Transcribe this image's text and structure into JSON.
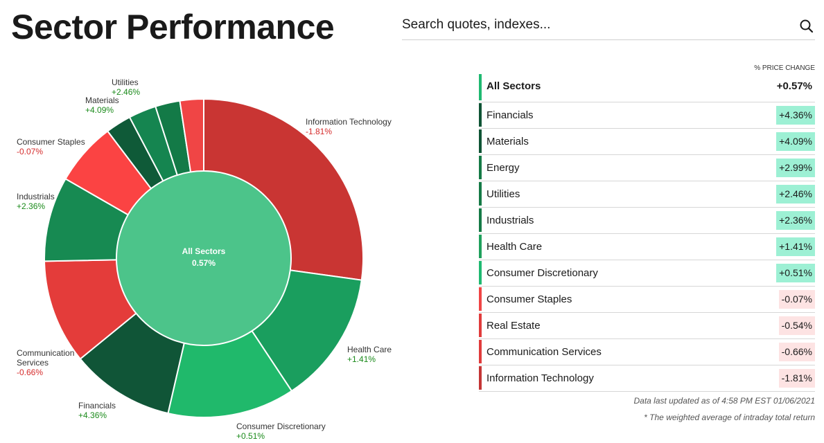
{
  "page": {
    "title": "Sector Performance",
    "search_placeholder": "Search quotes, indexes...",
    "search_icon": "search-icon"
  },
  "colors": {
    "positive_text": "#1a8a1a",
    "negative_text": "#d52b2b",
    "positive_badge": "#9df0d4",
    "negative_badge": "#fde3e3"
  },
  "table": {
    "column_header": "% PRICE CHANGE",
    "rows": [
      {
        "name": "All Sectors",
        "change": "+0.57%",
        "bar": "#1fb971",
        "badge": "none",
        "total": true
      },
      {
        "name": "Financials",
        "change": "+4.36%",
        "bar": "#0f5435",
        "badge": "pos"
      },
      {
        "name": "Materials",
        "change": "+4.09%",
        "bar": "#0f5435",
        "badge": "pos"
      },
      {
        "name": "Energy",
        "change": "+2.99%",
        "bar": "#157a46",
        "badge": "pos"
      },
      {
        "name": "Utilities",
        "change": "+2.46%",
        "bar": "#157a46",
        "badge": "pos"
      },
      {
        "name": "Industrials",
        "change": "+2.36%",
        "bar": "#157a46",
        "badge": "pos"
      },
      {
        "name": "Health Care",
        "change": "+1.41%",
        "bar": "#1fa05c",
        "badge": "pos"
      },
      {
        "name": "Consumer Discretionary",
        "change": "+0.51%",
        "bar": "#1fb971",
        "badge": "pos"
      },
      {
        "name": "Consumer Staples",
        "change": "-0.07%",
        "bar": "#f04545",
        "badge": "neg"
      },
      {
        "name": "Real Estate",
        "change": "-0.54%",
        "bar": "#e03c3c",
        "badge": "neg"
      },
      {
        "name": "Communication Services",
        "change": "-0.66%",
        "bar": "#e03c3c",
        "badge": "neg"
      },
      {
        "name": "Information Technology",
        "change": "-1.81%",
        "bar": "#c43535",
        "badge": "neg"
      }
    ]
  },
  "footer": {
    "updated": "Data last updated as of 4:58 PM EST 01/06/2021",
    "footnote": "* The weighted average of intraday total return"
  },
  "chart_data": {
    "type": "pie",
    "style": "donut",
    "center": {
      "label": "All Sectors",
      "value": 0.57,
      "value_text": "0.57%",
      "color": "#4cc48a"
    },
    "slices": [
      {
        "name": "Information Technology",
        "change": -1.81,
        "label_value": "-1.81%",
        "weight": 27.2,
        "color": "#c93533"
      },
      {
        "name": "Health Care",
        "change": 1.41,
        "label_value": "+1.41%",
        "weight": 13.5,
        "color": "#1a9e5e"
      },
      {
        "name": "Consumer Discretionary",
        "change": 0.51,
        "label_value": "+0.51%",
        "weight": 12.9,
        "color": "#20b96b"
      },
      {
        "name": "Financials",
        "change": 4.36,
        "label_value": "+4.36%",
        "weight": 10.5,
        "color": "#105537"
      },
      {
        "name": "Communication Services",
        "change": -0.66,
        "label_value": "-0.66%",
        "weight": 10.6,
        "color": "#e43c3a"
      },
      {
        "name": "Industrials",
        "change": 2.36,
        "label_value": "+2.36%",
        "weight": 8.6,
        "color": "#178a52"
      },
      {
        "name": "Consumer Staples",
        "change": -0.07,
        "label_value": "-0.07%",
        "weight": 6.4,
        "color": "#fb4343"
      },
      {
        "name": "Materials",
        "change": 4.09,
        "label_value": "+4.09%",
        "weight": 2.6,
        "color": "#0f5a38"
      },
      {
        "name": "Utilities",
        "change": 2.46,
        "label_value": "+2.46%",
        "weight": 2.8,
        "color": "#158550"
      },
      {
        "name": "Energy",
        "change": 2.99,
        "label_value": "+2.99%",
        "weight": 2.5,
        "color": "#137a47"
      },
      {
        "name": "Real Estate",
        "change": -0.54,
        "label_value": "-0.54%",
        "weight": 2.4,
        "color": "#f04545"
      }
    ],
    "labels": [
      {
        "name": "Information Technology",
        "lines": [
          "Information Technology"
        ],
        "value": "-1.81%",
        "positive": false
      },
      {
        "name": "Health Care",
        "lines": [
          "Health Care"
        ],
        "value": "+1.41%",
        "positive": true
      },
      {
        "name": "Consumer Discretionary",
        "lines": [
          "Consumer Discretionary"
        ],
        "value": "+0.51%",
        "positive": true
      },
      {
        "name": "Financials",
        "lines": [
          "Financials"
        ],
        "value": "+4.36%",
        "positive": true
      },
      {
        "name": "Communication Services",
        "lines": [
          "Communication",
          "Services"
        ],
        "value": "-0.66%",
        "positive": false
      },
      {
        "name": "Industrials",
        "lines": [
          "Industrials"
        ],
        "value": "+2.36%",
        "positive": true
      },
      {
        "name": "Consumer Staples",
        "lines": [
          "Consumer Staples"
        ],
        "value": "-0.07%",
        "positive": false
      },
      {
        "name": "Materials",
        "lines": [
          "Materials"
        ],
        "value": "+4.09%",
        "positive": true
      },
      {
        "name": "Utilities",
        "lines": [
          "Utilities"
        ],
        "value": "+2.46%",
        "positive": true
      }
    ]
  }
}
